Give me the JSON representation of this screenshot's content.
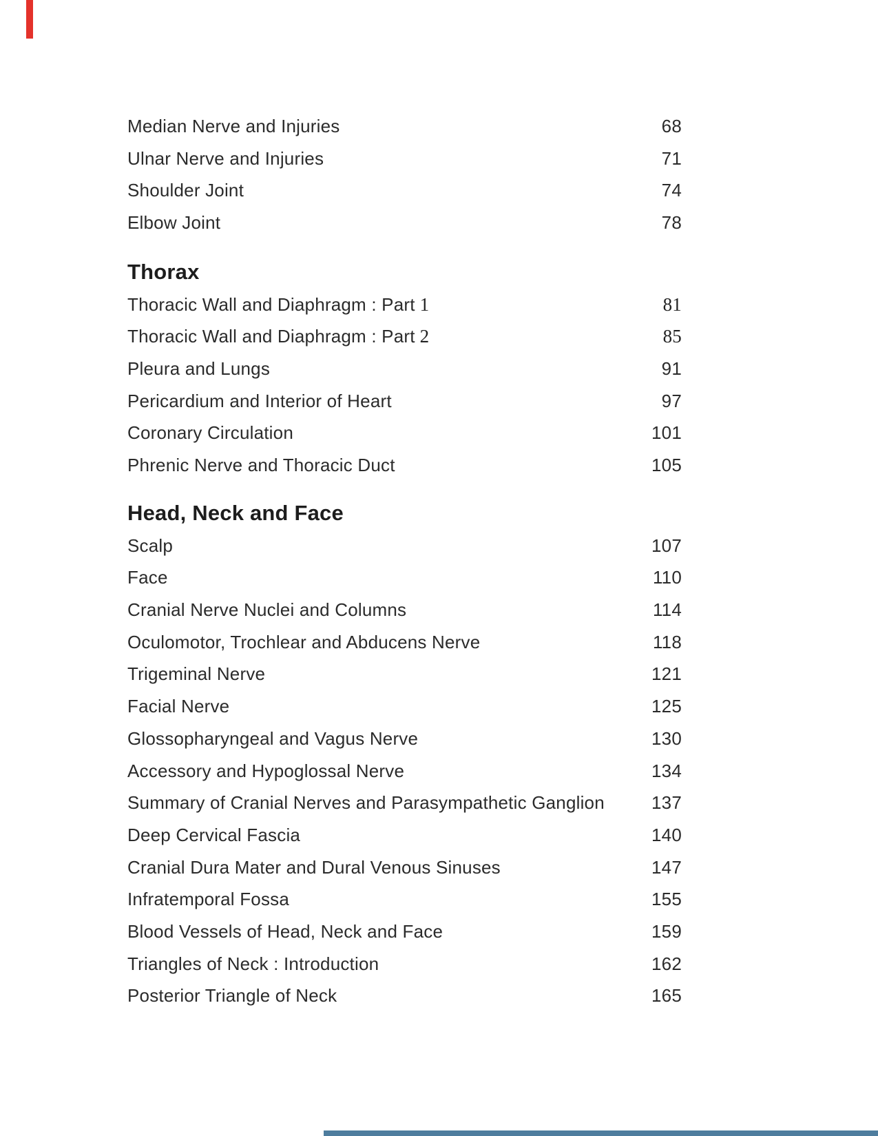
{
  "page": {
    "background": "#ffffff",
    "text_color": "#2b2b2b",
    "heading_color": "#1d1d1d"
  },
  "artifacts": {
    "red_mark_color": "#e4322b",
    "bottom_bar_color": "#4e7d9e"
  },
  "toc": {
    "sections": [
      {
        "heading": "",
        "items": [
          {
            "title": "Median Nerve and Injuries",
            "page": "68"
          },
          {
            "title": "Ulnar Nerve and Injuries",
            "page": "71"
          },
          {
            "title": "Shoulder Joint",
            "page": "74"
          },
          {
            "title": "Elbow Joint",
            "page": "78"
          }
        ]
      },
      {
        "heading": "Thorax",
        "items": [
          {
            "title": "Thoracic Wall and Diaphragm : Part",
            "title_num": "1",
            "page": "81"
          },
          {
            "title": "Thoracic Wall and Diaphragm : Part",
            "title_num": "2",
            "page": "85"
          },
          {
            "title": "Pleura and Lungs",
            "page": "91"
          },
          {
            "title": "Pericardium and Interior of Heart",
            "page": "97"
          },
          {
            "title": "Coronary Circulation",
            "page": "101"
          },
          {
            "title": "Phrenic Nerve and Thoracic Duct",
            "page": "105"
          }
        ]
      },
      {
        "heading": "Head, Neck and Face",
        "items": [
          {
            "title": "Scalp",
            "page": "107"
          },
          {
            "title": "Face",
            "page": "110"
          },
          {
            "title": "Cranial Nerve Nuclei and Columns",
            "page": "114"
          },
          {
            "title": "Oculomotor, Trochlear and Abducens Nerve",
            "page": "118"
          },
          {
            "title": "Trigeminal Nerve",
            "page": "121"
          },
          {
            "title": "Facial Nerve",
            "page": "125"
          },
          {
            "title": "Glossopharyngeal and Vagus Nerve",
            "page": "130"
          },
          {
            "title": "Accessory and Hypoglossal Nerve",
            "page": "134"
          },
          {
            "title": "Summary of Cranial Nerves and Parasympathetic Ganglion",
            "page": "137"
          },
          {
            "title": "Deep Cervical Fascia",
            "page": "140"
          },
          {
            "title": "Cranial Dura Mater and Dural Venous Sinuses",
            "page": "147"
          },
          {
            "title": "Infratemporal Fossa",
            "page": "155"
          },
          {
            "title": "Blood Vessels of Head, Neck and Face",
            "page": "159"
          },
          {
            "title": "Triangles of Neck : Introduction",
            "page": "162"
          },
          {
            "title": "Posterior Triangle of Neck",
            "page": "165"
          }
        ]
      }
    ]
  }
}
